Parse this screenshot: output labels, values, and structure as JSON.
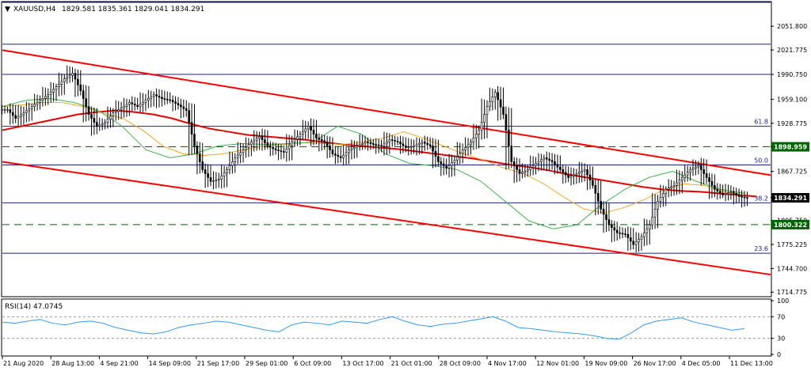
{
  "header": {
    "symbol": "XAUUSD,H4",
    "ohlc": "1829.581 1835.361 1829.041 1834.291",
    "menu_arrow": "▼"
  },
  "rsi_label": "RSI(14) 47.0745",
  "colors": {
    "background": "#ffffff",
    "frame": "#000000",
    "trend_line": "#ff0000",
    "ma_slow": "#e60000",
    "ma_mid": "#f5a623",
    "ma_fast": "#3cb44b",
    "ma_fastest": "#4682b4",
    "candles": "#000000",
    "horizontal_levels": "#1a237e",
    "support_dash": "#006400",
    "rsi_line": "#3399ff",
    "price_tag_bg": "#000000",
    "level_tag_bg": "#006400"
  },
  "chart_data": {
    "type": "candlestick",
    "instrument": "XAUUSD",
    "timeframe": "H4",
    "current_price": 1834.291,
    "y_ticks": [
      2051.8,
      2021.775,
      1990.75,
      1959.1,
      1928.775,
      1898.959,
      1867.725,
      1834.291,
      1805.75,
      1800.322,
      1775.225,
      1744.7,
      1714.775
    ],
    "y_tick_labels": [
      "2051.800",
      "2021.775",
      "1990.750",
      "1959.100",
      "1928.775",
      "1898.959",
      "1867.725",
      "1834.291",
      "1805.750",
      "1800.322",
      "1775.225",
      "1744.700",
      "1714.775"
    ],
    "ylim": [
      1710,
      2082
    ],
    "x_labels": [
      "21 Aug 2020",
      "28 Aug 13:00",
      "4 Sep 21:00",
      "14 Sep 09:00",
      "21 Sep 17:00",
      "29 Sep 01:00",
      "6 Oct 09:00",
      "13 Oct 17:00",
      "21 Oct 01:00",
      "28 Oct 09:00",
      "4 Nov 17:00",
      "12 Nov 01:00",
      "19 Nov 09:00",
      "26 Nov 17:00",
      "4 Dec 05:00",
      "11 Dec 13:00"
    ],
    "horizontal_levels": [
      {
        "price": 2082.0,
        "label": ""
      },
      {
        "price": 2029.0,
        "label": ""
      },
      {
        "price": 1990.75,
        "label": ""
      },
      {
        "price": 1925.0,
        "label": "61.8"
      },
      {
        "price": 1876.0,
        "label": "50.0"
      },
      {
        "price": 1828.0,
        "label": "38.2"
      },
      {
        "price": 1764.0,
        "label": "23.6"
      }
    ],
    "dashed_levels": [
      {
        "price": 1898.959,
        "label": "1898.959"
      },
      {
        "price": 1800.322,
        "label": "1800.322"
      }
    ],
    "fib_labels": [
      "61.8",
      "50.0",
      "38.2",
      "23.6"
    ],
    "channel_lines": [
      {
        "x1": 0.0,
        "y1": 2021.5,
        "x2": 1.0,
        "y2": 1863.0
      },
      {
        "x1": 0.0,
        "y1": 1880.0,
        "x2": 1.0,
        "y2": 1737.0
      }
    ],
    "series": [
      {
        "kind": "close",
        "values": [
          1946,
          1935,
          1942,
          1950,
          1958,
          1965,
          1975,
          1985,
          1992,
          1970,
          1940,
          1925,
          1930,
          1942,
          1948,
          1955,
          1950,
          1958,
          1965,
          1960,
          1958,
          1952,
          1945,
          1900,
          1870,
          1855,
          1858,
          1870,
          1885,
          1895,
          1905,
          1912,
          1900,
          1895,
          1892,
          1905,
          1915,
          1925,
          1910,
          1905,
          1890,
          1885,
          1895,
          1900,
          1905,
          1902,
          1900,
          1908,
          1905,
          1898,
          1900,
          1905,
          1900,
          1880,
          1872,
          1882,
          1895,
          1905,
          1920,
          1950,
          1968,
          1940,
          1880,
          1865,
          1870,
          1878,
          1885,
          1880,
          1870,
          1860,
          1865,
          1870,
          1850,
          1820,
          1800,
          1790,
          1788,
          1775,
          1785,
          1800,
          1830,
          1845,
          1850,
          1860,
          1870,
          1875,
          1860,
          1845,
          1838,
          1842,
          1836,
          1834
        ]
      },
      {
        "kind": "ma_slow",
        "values": [
          1920,
          1925,
          1930,
          1935,
          1940,
          1943,
          1945,
          1943,
          1940,
          1935,
          1928,
          1922,
          1918,
          1914,
          1912,
          1910,
          1908,
          1905,
          1902,
          1900,
          1898,
          1896,
          1893,
          1890,
          1887,
          1884,
          1880,
          1876,
          1873,
          1869,
          1864,
          1860,
          1856,
          1852,
          1848,
          1845,
          1843,
          1842,
          1840,
          1838,
          1836
        ]
      },
      {
        "kind": "ma_mid",
        "values": [
          1950,
          1952,
          1955,
          1955,
          1950,
          1942,
          1935,
          1920,
          1900,
          1890,
          1888,
          1890,
          1895,
          1900,
          1902,
          1904,
          1903,
          1902,
          1905,
          1910,
          1918,
          1910,
          1900,
          1890,
          1882,
          1872,
          1865,
          1852,
          1835,
          1820,
          1815,
          1822,
          1832,
          1845,
          1852,
          1850,
          1842,
          1838
        ]
      },
      {
        "kind": "ma_fast",
        "values": [
          1950,
          1958,
          1960,
          1955,
          1945,
          1925,
          1895,
          1885,
          1890,
          1900,
          1903,
          1902,
          1903,
          1905,
          1925,
          1915,
          1890,
          1878,
          1875,
          1870,
          1855,
          1830,
          1805,
          1795,
          1800,
          1825,
          1845,
          1860,
          1868,
          1855,
          1845,
          1840
        ]
      },
      {
        "kind": "rsi",
        "values": [
          60,
          58,
          62,
          65,
          58,
          55,
          60,
          62,
          58,
          50,
          45,
          40,
          38,
          42,
          50,
          55,
          58,
          62,
          60,
          55,
          50,
          45,
          42,
          55,
          60,
          58,
          55,
          62,
          60,
          58,
          65,
          70,
          62,
          55,
          52,
          56,
          58,
          62,
          66,
          70,
          62,
          50,
          48,
          45,
          42,
          40,
          38,
          35,
          30,
          28,
          40,
          55,
          62,
          65,
          68,
          60,
          55,
          50,
          45,
          48
        ]
      }
    ],
    "rsi_levels": [
      100,
      70,
      30,
      0
    ],
    "rsi_value": 47.0745
  }
}
